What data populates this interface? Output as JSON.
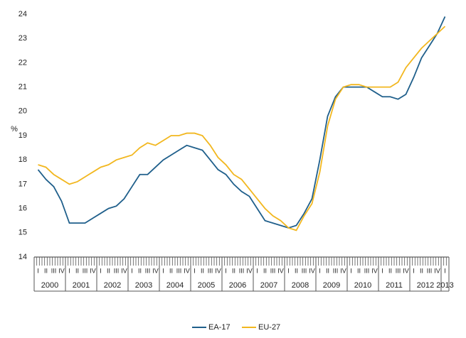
{
  "chart_data": {
    "type": "line",
    "y_label": "%",
    "categories": [
      "I",
      "II",
      "III",
      "IV",
      "I",
      "II",
      "III",
      "IV",
      "I",
      "II",
      "III",
      "IV",
      "I",
      "II",
      "III",
      "IV",
      "I",
      "II",
      "III",
      "IV",
      "I",
      "II",
      "III",
      "IV",
      "I",
      "II",
      "III",
      "IV",
      "I",
      "II",
      "III",
      "IV",
      "I",
      "II",
      "III",
      "IV",
      "I",
      "II",
      "III",
      "IV",
      "I",
      "II",
      "III",
      "IV",
      "I",
      "II",
      "III",
      "IV",
      "I",
      "II",
      "III",
      "IV",
      "I"
    ],
    "years": [
      "2000",
      "2001",
      "2002",
      "2003",
      "2004",
      "2005",
      "2006",
      "2007",
      "2008",
      "2009",
      "2010",
      "2011",
      "2012",
      "2013"
    ],
    "series": [
      {
        "name": "EA-17",
        "color": "#1f5f8b",
        "values": [
          17.6,
          17.2,
          16.9,
          16.3,
          15.4,
          15.4,
          15.4,
          15.6,
          15.8,
          16.0,
          16.1,
          16.4,
          16.9,
          17.4,
          17.4,
          17.7,
          18.0,
          18.2,
          18.4,
          18.6,
          18.5,
          18.4,
          18.0,
          17.6,
          17.4,
          17.0,
          16.7,
          16.5,
          16.0,
          15.5,
          15.4,
          15.3,
          15.2,
          15.3,
          15.8,
          16.4,
          18.0,
          19.8,
          20.6,
          21.0,
          21.0,
          21.0,
          21.0,
          20.8,
          20.6,
          20.6,
          20.5,
          20.7,
          21.4,
          22.2,
          22.7,
          23.2,
          23.9
        ]
      },
      {
        "name": "EU-27",
        "color": "#f2b71f",
        "values": [
          17.8,
          17.7,
          17.4,
          17.2,
          17.0,
          17.1,
          17.3,
          17.5,
          17.7,
          17.8,
          18.0,
          18.1,
          18.2,
          18.5,
          18.7,
          18.6,
          18.8,
          19.0,
          19.0,
          19.1,
          19.1,
          19.0,
          18.6,
          18.1,
          17.8,
          17.4,
          17.2,
          16.8,
          16.4,
          16.0,
          15.7,
          15.5,
          15.2,
          15.1,
          15.7,
          16.2,
          17.5,
          19.4,
          20.5,
          21.0,
          21.1,
          21.1,
          21.0,
          21.0,
          21.0,
          21.0,
          21.2,
          21.8,
          22.2,
          22.6,
          22.9,
          23.2,
          23.5
        ]
      }
    ],
    "ylim": [
      14,
      24
    ],
    "yticks": [
      14,
      15,
      16,
      17,
      18,
      19,
      20,
      21,
      22,
      23,
      24
    ],
    "grid": false
  }
}
